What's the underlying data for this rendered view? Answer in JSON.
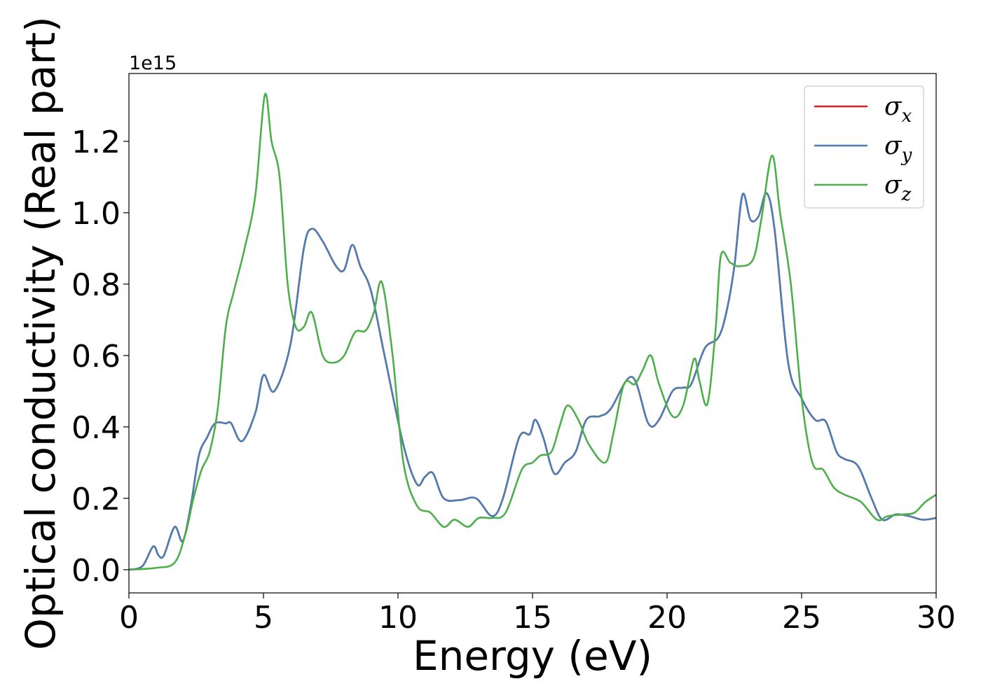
{
  "chart_data": {
    "type": "line",
    "title": "",
    "xlabel": "Energy (eV)",
    "ylabel": "Optical conductivity (Real part)",
    "y_offset_label": "1e15",
    "xlim": [
      0,
      30
    ],
    "ylim": [
      -0.065,
      1.39
    ],
    "x_ticks": [
      0,
      5,
      10,
      15,
      20,
      25,
      30
    ],
    "y_ticks": [
      0.0,
      0.2,
      0.4,
      0.6,
      0.8,
      1.0,
      1.2
    ],
    "x_tick_labels": [
      "0",
      "5",
      "10",
      "15",
      "20",
      "25",
      "30"
    ],
    "y_tick_labels": [
      "0.0",
      "0.2",
      "0.4",
      "0.6",
      "0.8",
      "1.0",
      "1.2"
    ],
    "grid": false,
    "legend_position": "top-right",
    "series": [
      {
        "name": "σx",
        "legend_symbol": "σ",
        "legend_sub": "x",
        "color": "#e41a1c",
        "shared_with": "σy",
        "x": [
          0,
          0.5,
          0.9,
          1.1,
          1.3,
          1.7,
          2.0,
          2.3,
          2.6,
          2.9,
          3.2,
          3.6,
          3.8,
          4.2,
          4.7,
          5.0,
          5.4,
          6.0,
          6.5,
          6.8,
          7.2,
          7.7,
          8.0,
          8.3,
          8.6,
          9.0,
          9.5,
          10.2,
          10.7,
          11.0,
          11.3,
          11.7,
          12.3,
          12.9,
          13.5,
          13.9,
          14.5,
          14.9,
          15.1,
          15.4,
          15.8,
          16.2,
          16.6,
          17.0,
          17.5,
          17.9,
          18.7,
          19.3,
          19.7,
          20.2,
          20.6,
          20.9,
          21.4,
          21.9,
          22.2,
          22.5,
          22.8,
          23.1,
          23.4,
          23.7,
          24.0,
          24.5,
          25.0,
          25.5,
          25.9,
          26.3,
          26.6,
          27.1,
          27.6,
          28.0,
          28.5,
          29.0,
          29.5,
          30.0
        ],
        "y": [
          0.0,
          0.01,
          0.065,
          0.04,
          0.04,
          0.12,
          0.08,
          0.18,
          0.32,
          0.37,
          0.41,
          0.41,
          0.41,
          0.36,
          0.44,
          0.545,
          0.5,
          0.63,
          0.9,
          0.955,
          0.92,
          0.85,
          0.84,
          0.91,
          0.85,
          0.78,
          0.6,
          0.35,
          0.24,
          0.26,
          0.27,
          0.2,
          0.195,
          0.2,
          0.15,
          0.2,
          0.37,
          0.38,
          0.42,
          0.37,
          0.27,
          0.3,
          0.33,
          0.42,
          0.43,
          0.45,
          0.54,
          0.41,
          0.42,
          0.5,
          0.51,
          0.52,
          0.62,
          0.65,
          0.72,
          0.85,
          1.05,
          0.98,
          0.99,
          1.055,
          0.95,
          0.58,
          0.48,
          0.42,
          0.415,
          0.33,
          0.31,
          0.29,
          0.2,
          0.14,
          0.155,
          0.15,
          0.14,
          0.145
        ]
      },
      {
        "name": "σy",
        "legend_symbol": "σ",
        "legend_sub": "y",
        "color": "#4a7eb4",
        "x": [
          0,
          0.5,
          0.9,
          1.1,
          1.3,
          1.7,
          2.0,
          2.3,
          2.6,
          2.9,
          3.2,
          3.6,
          3.8,
          4.2,
          4.7,
          5.0,
          5.4,
          6.0,
          6.5,
          6.8,
          7.2,
          7.7,
          8.0,
          8.3,
          8.6,
          9.0,
          9.5,
          10.2,
          10.7,
          11.0,
          11.3,
          11.7,
          12.3,
          12.9,
          13.5,
          13.9,
          14.5,
          14.9,
          15.1,
          15.4,
          15.8,
          16.2,
          16.6,
          17.0,
          17.5,
          17.9,
          18.7,
          19.3,
          19.7,
          20.2,
          20.6,
          20.9,
          21.4,
          21.9,
          22.2,
          22.5,
          22.8,
          23.1,
          23.4,
          23.7,
          24.0,
          24.5,
          25.0,
          25.5,
          25.9,
          26.3,
          26.6,
          27.1,
          27.6,
          28.0,
          28.5,
          29.0,
          29.5,
          30.0
        ],
        "y": [
          0.0,
          0.01,
          0.065,
          0.04,
          0.04,
          0.12,
          0.08,
          0.18,
          0.32,
          0.37,
          0.41,
          0.41,
          0.41,
          0.36,
          0.44,
          0.545,
          0.5,
          0.63,
          0.9,
          0.955,
          0.92,
          0.85,
          0.84,
          0.91,
          0.85,
          0.78,
          0.6,
          0.35,
          0.24,
          0.26,
          0.27,
          0.2,
          0.195,
          0.2,
          0.15,
          0.2,
          0.37,
          0.38,
          0.42,
          0.37,
          0.27,
          0.3,
          0.33,
          0.42,
          0.43,
          0.45,
          0.54,
          0.41,
          0.42,
          0.5,
          0.51,
          0.52,
          0.62,
          0.65,
          0.72,
          0.85,
          1.05,
          0.98,
          0.99,
          1.055,
          0.95,
          0.58,
          0.48,
          0.42,
          0.415,
          0.33,
          0.31,
          0.29,
          0.2,
          0.14,
          0.155,
          0.15,
          0.14,
          0.145
        ]
      },
      {
        "name": "σz",
        "legend_symbol": "σ",
        "legend_sub": "z",
        "color": "#4daf4a",
        "x": [
          0,
          1.0,
          1.7,
          2.1,
          2.4,
          2.7,
          3.0,
          3.3,
          3.6,
          3.9,
          4.3,
          4.7,
          5.05,
          5.3,
          5.6,
          5.9,
          6.2,
          6.5,
          6.8,
          7.2,
          7.6,
          8.0,
          8.4,
          8.8,
          9.1,
          9.4,
          9.8,
          10.2,
          10.7,
          11.2,
          11.7,
          12.1,
          12.6,
          13.0,
          13.5,
          14.0,
          14.6,
          15.0,
          15.3,
          15.7,
          16.0,
          16.3,
          16.7,
          17.1,
          17.7,
          18.0,
          18.4,
          18.8,
          19.1,
          19.4,
          19.7,
          20.2,
          20.6,
          21.0,
          21.2,
          21.5,
          21.8,
          22.0,
          22.35,
          22.7,
          23.2,
          23.5,
          23.9,
          24.2,
          24.6,
          25.0,
          25.4,
          25.8,
          26.2,
          26.6,
          27.2,
          27.8,
          28.2,
          28.8,
          29.2,
          29.6,
          30.0
        ],
        "y": [
          0.0,
          0.005,
          0.02,
          0.1,
          0.2,
          0.28,
          0.33,
          0.45,
          0.68,
          0.78,
          0.9,
          1.05,
          1.33,
          1.2,
          1.1,
          0.8,
          0.68,
          0.68,
          0.72,
          0.6,
          0.58,
          0.6,
          0.665,
          0.67,
          0.72,
          0.805,
          0.6,
          0.3,
          0.18,
          0.16,
          0.12,
          0.14,
          0.12,
          0.145,
          0.145,
          0.16,
          0.28,
          0.3,
          0.32,
          0.33,
          0.4,
          0.46,
          0.42,
          0.35,
          0.3,
          0.38,
          0.52,
          0.52,
          0.56,
          0.6,
          0.52,
          0.43,
          0.46,
          0.59,
          0.53,
          0.465,
          0.67,
          0.88,
          0.86,
          0.85,
          0.87,
          0.98,
          1.16,
          1.0,
          0.8,
          0.48,
          0.3,
          0.28,
          0.23,
          0.21,
          0.19,
          0.14,
          0.15,
          0.155,
          0.16,
          0.19,
          0.21
        ]
      }
    ]
  }
}
